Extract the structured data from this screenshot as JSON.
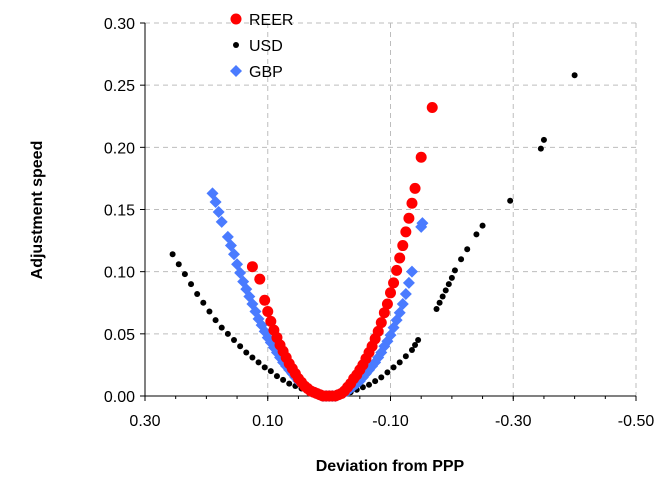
{
  "chart_data": {
    "type": "scatter",
    "title": "",
    "xlabel": "Deviation from PPP",
    "ylabel": "Adjustment speed",
    "xlim": [
      0.3,
      -0.5
    ],
    "ylim": [
      0.0,
      0.3
    ],
    "x_reversed": true,
    "x_ticks": [
      "0.30",
      "0.10",
      "-0.10",
      "-0.30",
      "-0.50"
    ],
    "y_ticks": [
      "0.00",
      "0.05",
      "0.10",
      "0.15",
      "0.20",
      "0.25",
      "0.30"
    ],
    "grid": "dashed",
    "legend": "top-left",
    "series": [
      {
        "name": "REER",
        "color": "#ff0000",
        "marker": "circle",
        "points": [
          [
            0.125,
            0.104
          ],
          [
            0.113,
            0.094
          ],
          [
            0.105,
            0.077
          ],
          [
            0.1,
            0.068
          ],
          [
            0.095,
            0.06
          ],
          [
            0.09,
            0.053
          ],
          [
            0.085,
            0.047
          ],
          [
            0.08,
            0.041
          ],
          [
            0.075,
            0.036
          ],
          [
            0.07,
            0.031
          ],
          [
            0.065,
            0.026
          ],
          [
            0.06,
            0.022
          ],
          [
            0.055,
            0.018
          ],
          [
            0.05,
            0.014
          ],
          [
            0.045,
            0.011
          ],
          [
            0.04,
            0.008
          ],
          [
            0.035,
            0.006
          ],
          [
            0.03,
            0.004
          ],
          [
            0.025,
            0.003
          ],
          [
            0.02,
            0.002
          ],
          [
            0.015,
            0.001
          ],
          [
            0.01,
            0.0
          ],
          [
            0.005,
            0.0
          ],
          [
            0.0,
            0.0
          ],
          [
            -0.005,
            0.0
          ],
          [
            -0.01,
            0.0
          ],
          [
            -0.015,
            0.001
          ],
          [
            -0.02,
            0.002
          ],
          [
            -0.025,
            0.004
          ],
          [
            -0.03,
            0.007
          ],
          [
            -0.035,
            0.01
          ],
          [
            -0.04,
            0.014
          ],
          [
            -0.045,
            0.017
          ],
          [
            -0.05,
            0.021
          ],
          [
            -0.055,
            0.025
          ],
          [
            -0.06,
            0.03
          ],
          [
            -0.065,
            0.035
          ],
          [
            -0.07,
            0.04
          ],
          [
            -0.075,
            0.046
          ],
          [
            -0.08,
            0.052
          ],
          [
            -0.085,
            0.059
          ],
          [
            -0.09,
            0.067
          ],
          [
            -0.095,
            0.074
          ],
          [
            -0.1,
            0.083
          ],
          [
            -0.105,
            0.091
          ],
          [
            -0.11,
            0.101
          ],
          [
            -0.115,
            0.111
          ],
          [
            -0.12,
            0.121
          ],
          [
            -0.125,
            0.132
          ],
          [
            -0.13,
            0.143
          ],
          [
            -0.135,
            0.155
          ],
          [
            -0.14,
            0.167
          ],
          [
            -0.15,
            0.192
          ],
          [
            -0.168,
            0.232
          ]
        ]
      },
      {
        "name": "USD",
        "color": "#000000",
        "marker": "small-circle",
        "points": [
          [
            0.255,
            0.114
          ],
          [
            0.245,
            0.106
          ],
          [
            0.235,
            0.098
          ],
          [
            0.225,
            0.09
          ],
          [
            0.215,
            0.082
          ],
          [
            0.205,
            0.075
          ],
          [
            0.195,
            0.068
          ],
          [
            0.185,
            0.061
          ],
          [
            0.175,
            0.055
          ],
          [
            0.165,
            0.05
          ],
          [
            0.155,
            0.045
          ],
          [
            0.145,
            0.04
          ],
          [
            0.135,
            0.035
          ],
          [
            0.125,
            0.031
          ],
          [
            0.115,
            0.027
          ],
          [
            0.105,
            0.023
          ],
          [
            0.095,
            0.02
          ],
          [
            0.085,
            0.016
          ],
          [
            0.075,
            0.013
          ],
          [
            0.065,
            0.01
          ],
          [
            0.055,
            0.008
          ],
          [
            0.045,
            0.006
          ],
          [
            0.035,
            0.004
          ],
          [
            0.025,
            0.002
          ],
          [
            0.015,
            0.001
          ],
          [
            0.005,
            0.0
          ],
          [
            -0.005,
            0.0
          ],
          [
            -0.015,
            0.001
          ],
          [
            -0.025,
            0.002
          ],
          [
            -0.035,
            0.003
          ],
          [
            -0.045,
            0.005
          ],
          [
            -0.055,
            0.007
          ],
          [
            -0.065,
            0.009
          ],
          [
            -0.075,
            0.012
          ],
          [
            -0.085,
            0.015
          ],
          [
            -0.095,
            0.019
          ],
          [
            -0.105,
            0.023
          ],
          [
            -0.115,
            0.027
          ],
          [
            -0.125,
            0.032
          ],
          [
            -0.135,
            0.037
          ],
          [
            -0.14,
            0.041
          ],
          [
            -0.145,
            0.045
          ],
          [
            -0.175,
            0.07
          ],
          [
            -0.18,
            0.075
          ],
          [
            -0.185,
            0.08
          ],
          [
            -0.19,
            0.085
          ],
          [
            -0.195,
            0.09
          ],
          [
            -0.2,
            0.095
          ],
          [
            -0.205,
            0.101
          ],
          [
            -0.215,
            0.11
          ],
          [
            -0.225,
            0.118
          ],
          [
            -0.24,
            0.13
          ],
          [
            -0.25,
            0.137
          ],
          [
            -0.295,
            0.157
          ],
          [
            -0.345,
            0.199
          ],
          [
            -0.35,
            0.206
          ],
          [
            -0.4,
            0.258
          ]
        ]
      },
      {
        "name": "GBP",
        "color": "#4a7bff",
        "marker": "diamond",
        "points": [
          [
            0.19,
            0.163
          ],
          [
            0.185,
            0.156
          ],
          [
            0.18,
            0.148
          ],
          [
            0.175,
            0.14
          ],
          [
            0.165,
            0.128
          ],
          [
            0.16,
            0.121
          ],
          [
            0.155,
            0.114
          ],
          [
            0.15,
            0.106
          ],
          [
            0.145,
            0.099
          ],
          [
            0.14,
            0.092
          ],
          [
            0.135,
            0.086
          ],
          [
            0.13,
            0.08
          ],
          [
            0.125,
            0.074
          ],
          [
            0.12,
            0.068
          ],
          [
            0.115,
            0.062
          ],
          [
            0.11,
            0.057
          ],
          [
            0.105,
            0.052
          ],
          [
            0.1,
            0.047
          ],
          [
            0.095,
            0.043
          ],
          [
            0.09,
            0.039
          ],
          [
            0.085,
            0.035
          ],
          [
            0.08,
            0.031
          ],
          [
            0.075,
            0.027
          ],
          [
            0.07,
            0.024
          ],
          [
            0.065,
            0.021
          ],
          [
            0.06,
            0.018
          ],
          [
            0.055,
            0.015
          ],
          [
            0.05,
            0.012
          ],
          [
            0.045,
            0.01
          ],
          [
            0.04,
            0.008
          ],
          [
            0.035,
            0.006
          ],
          [
            0.03,
            0.004
          ],
          [
            0.025,
            0.003
          ],
          [
            0.02,
            0.002
          ],
          [
            0.015,
            0.001
          ],
          [
            0.01,
            0.0
          ],
          [
            0.005,
            0.0
          ],
          [
            0.0,
            0.0
          ],
          [
            -0.005,
            0.0
          ],
          [
            -0.01,
            0.0
          ],
          [
            -0.015,
            0.001
          ],
          [
            -0.02,
            0.002
          ],
          [
            -0.025,
            0.003
          ],
          [
            -0.03,
            0.004
          ],
          [
            -0.035,
            0.006
          ],
          [
            -0.04,
            0.008
          ],
          [
            -0.045,
            0.01
          ],
          [
            -0.05,
            0.012
          ],
          [
            -0.055,
            0.015
          ],
          [
            -0.06,
            0.018
          ],
          [
            -0.065,
            0.021
          ],
          [
            -0.07,
            0.024
          ],
          [
            -0.075,
            0.027
          ],
          [
            -0.08,
            0.031
          ],
          [
            -0.085,
            0.035
          ],
          [
            -0.09,
            0.04
          ],
          [
            -0.095,
            0.044
          ],
          [
            -0.1,
            0.049
          ],
          [
            -0.105,
            0.055
          ],
          [
            -0.11,
            0.061
          ],
          [
            -0.115,
            0.067
          ],
          [
            -0.12,
            0.074
          ],
          [
            -0.125,
            0.082
          ],
          [
            -0.13,
            0.091
          ],
          [
            -0.135,
            0.1
          ],
          [
            -0.15,
            0.136
          ],
          [
            -0.152,
            0.139
          ]
        ]
      }
    ]
  }
}
